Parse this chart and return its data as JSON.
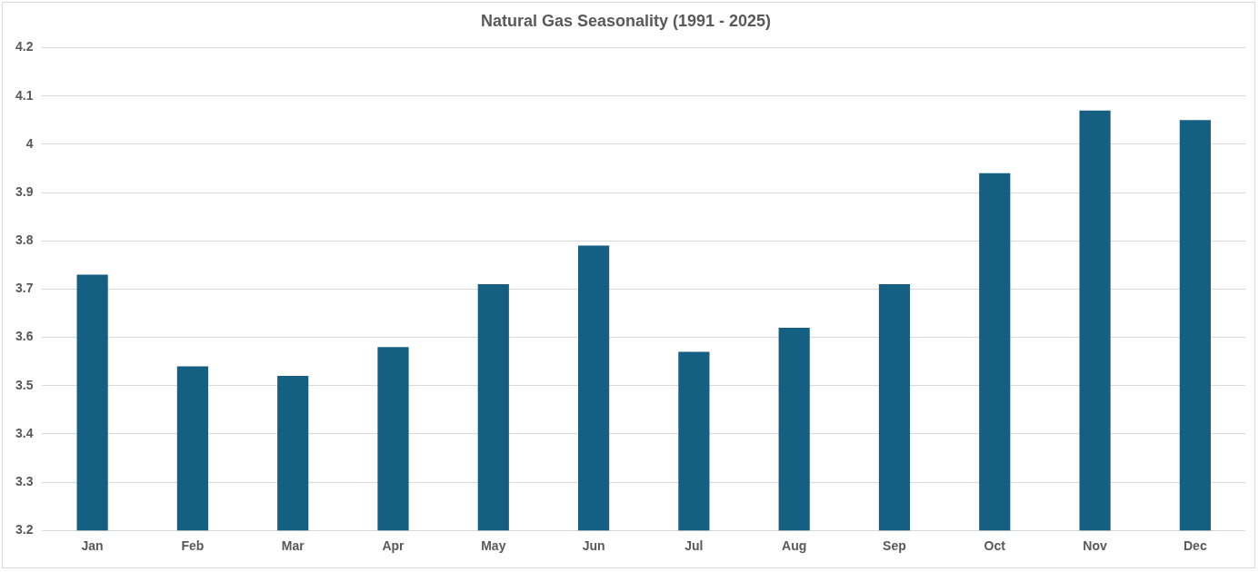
{
  "chart_data": {
    "type": "bar",
    "title": "Natural Gas Seasonality (1991 - 2025)",
    "categories": [
      "Jan",
      "Feb",
      "Mar",
      "Apr",
      "May",
      "Jun",
      "Jul",
      "Aug",
      "Sep",
      "Oct",
      "Nov",
      "Dec"
    ],
    "values": [
      3.73,
      3.54,
      3.52,
      3.58,
      3.71,
      3.79,
      3.57,
      3.62,
      3.71,
      3.94,
      4.07,
      4.05
    ],
    "color": "#155f82",
    "ylim": [
      3.2,
      4.2
    ],
    "yticks": [
      3.2,
      3.3,
      3.4,
      3.5,
      3.6,
      3.7,
      3.8,
      3.9,
      4,
      4.1,
      4.2
    ],
    "grid": "y"
  }
}
